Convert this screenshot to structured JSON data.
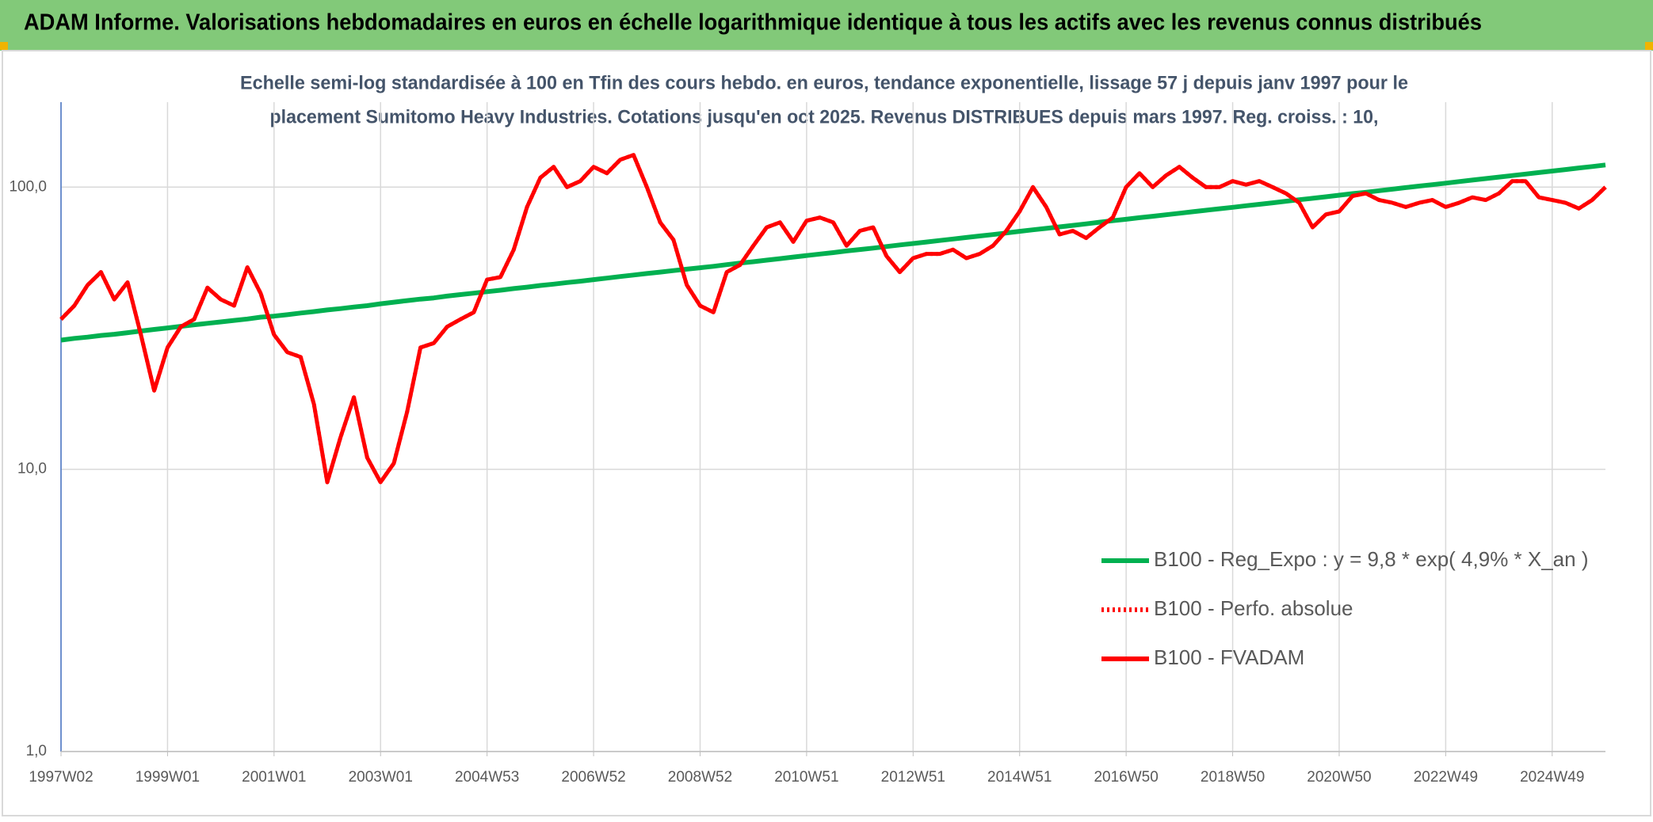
{
  "header": {
    "title": "ADAM Informe. Valorisations hebdomadaires en euros en échelle logarithmique identique à tous les actifs avec les revenus connus distribués"
  },
  "chart_data": {
    "type": "line",
    "subtitle": [
      "Echelle semi-log standardisée à 100 en Tfin des cours hebdo. en euros, tendance exponentielle, lissage 57 j depuis janv 1997 pour le",
      "placement Sumitomo Heavy Industries. Cotations jusqu'en oct 2025. Revenus DISTRIBUES depuis mars 1997. Reg. croiss. : 10,"
    ],
    "log_scale": true,
    "grid": true,
    "legend_position": "lower-right",
    "ylim": [
      1,
      200
    ],
    "yticks": [
      {
        "value": 1,
        "label": "1,0"
      },
      {
        "value": 10,
        "label": "10,0"
      },
      {
        "value": 100,
        "label": "100,0"
      }
    ],
    "categories": [
      "1997W02",
      null,
      null,
      null,
      null,
      null,
      null,
      null,
      "1999W01",
      null,
      null,
      null,
      null,
      null,
      null,
      null,
      "2001W01",
      null,
      null,
      null,
      null,
      null,
      null,
      null,
      "2003W01",
      null,
      null,
      null,
      null,
      null,
      null,
      null,
      "2004W53",
      null,
      null,
      null,
      null,
      null,
      null,
      null,
      "2006W52",
      null,
      null,
      null,
      null,
      null,
      null,
      null,
      "2008W52",
      null,
      null,
      null,
      null,
      null,
      null,
      null,
      "2010W51",
      null,
      null,
      null,
      null,
      null,
      null,
      null,
      "2012W51",
      null,
      null,
      null,
      null,
      null,
      null,
      null,
      "2014W51",
      null,
      null,
      null,
      null,
      null,
      null,
      null,
      "2016W50",
      null,
      null,
      null,
      null,
      null,
      null,
      null,
      "2018W50",
      null,
      null,
      null,
      null,
      null,
      null,
      null,
      "2020W50",
      null,
      null,
      null,
      null,
      null,
      null,
      null,
      "2022W49",
      null,
      null,
      null,
      null,
      null,
      null,
      null,
      "2024W49",
      null,
      null,
      null,
      null
    ],
    "series": [
      {
        "name": "B100 - Reg_Expo : y = 9,8 * exp( 4,9% *  X_an )",
        "color": "#00b050",
        "dash": "solid",
        "values": [
          28.7,
          29.1,
          29.4,
          29.8,
          30.1,
          30.5,
          30.9,
          31.3,
          31.7,
          32.1,
          32.5,
          32.9,
          33.3,
          33.7,
          34.1,
          34.6,
          34.9,
          35.3,
          35.8,
          36.2,
          36.7,
          37.1,
          37.6,
          38.0,
          38.6,
          39.1,
          39.6,
          40.1,
          40.5,
          41.1,
          41.6,
          42.1,
          42.6,
          43.1,
          43.7,
          44.2,
          44.8,
          45.3,
          45.9,
          46.4,
          47.0,
          47.6,
          48.2,
          48.8,
          49.4,
          50.0,
          50.6,
          51.2,
          51.8,
          52.4,
          53.1,
          53.8,
          54.4,
          55.1,
          55.8,
          56.5,
          57.2,
          57.9,
          58.6,
          59.4,
          60.1,
          60.8,
          61.6,
          62.4,
          63.1,
          63.9,
          64.7,
          65.5,
          66.3,
          67.1,
          67.9,
          68.8,
          69.7,
          70.6,
          71.4,
          72.3,
          73.2,
          74.1,
          75.1,
          76.0,
          76.9,
          77.9,
          78.8,
          79.8,
          80.8,
          81.8,
          82.8,
          83.8,
          84.8,
          85.9,
          86.9,
          88.0,
          89.1,
          90.2,
          91.3,
          92.4,
          93.6,
          94.8,
          95.9,
          97.1,
          98.3,
          99.6,
          100.8,
          102.0,
          103.3,
          104.6,
          105.9,
          107.2,
          108.5,
          109.9,
          111.2,
          112.6,
          114.0,
          115.4,
          116.9,
          118.3,
          119.8
        ]
      },
      {
        "name": "B100 - Perfo. absolue",
        "color": "#ff0000",
        "dash": "dotted",
        "values": [
          34,
          38,
          45,
          50,
          40,
          46,
          30,
          19,
          27,
          32,
          34,
          44,
          40,
          38,
          52,
          42,
          30,
          26,
          25,
          17,
          9,
          13,
          18,
          11,
          9,
          10.5,
          16,
          27,
          28,
          32,
          34,
          36,
          47,
          48,
          60,
          85,
          108,
          118,
          100,
          105,
          118,
          112,
          125,
          130,
          100,
          75,
          65,
          45,
          38,
          36,
          50,
          53,
          62,
          72,
          75,
          64,
          76,
          78,
          75,
          62,
          70,
          72,
          57,
          50,
          56,
          58,
          58,
          60,
          56,
          58,
          62,
          70,
          82,
          100,
          85,
          68,
          70,
          66,
          72,
          78,
          100,
          112,
          100,
          110,
          118,
          108,
          100,
          100,
          105,
          102,
          105,
          100,
          95,
          88,
          72,
          80,
          82,
          93,
          95,
          90,
          88,
          85,
          88,
          90,
          85,
          88,
          92,
          90,
          95,
          105,
          105,
          92,
          90,
          88,
          84,
          90,
          100
        ]
      },
      {
        "name": "B100 - FVADAM",
        "color": "#ff0000",
        "dash": "solid",
        "values": [
          34,
          38,
          45,
          50,
          40,
          46,
          30,
          19,
          27,
          32,
          34,
          44,
          40,
          38,
          52,
          42,
          30,
          26,
          25,
          17,
          9,
          13,
          18,
          11,
          9,
          10.5,
          16,
          27,
          28,
          32,
          34,
          36,
          47,
          48,
          60,
          85,
          108,
          118,
          100,
          105,
          118,
          112,
          125,
          130,
          100,
          75,
          65,
          45,
          38,
          36,
          50,
          53,
          62,
          72,
          75,
          64,
          76,
          78,
          75,
          62,
          70,
          72,
          57,
          50,
          56,
          58,
          58,
          60,
          56,
          58,
          62,
          70,
          82,
          100,
          85,
          68,
          70,
          66,
          72,
          78,
          100,
          112,
          100,
          110,
          118,
          108,
          100,
          100,
          105,
          102,
          105,
          100,
          95,
          88,
          72,
          80,
          82,
          93,
          95,
          90,
          88,
          85,
          88,
          90,
          85,
          88,
          92,
          90,
          95,
          105,
          105,
          92,
          90,
          88,
          84,
          90,
          100
        ]
      }
    ]
  }
}
